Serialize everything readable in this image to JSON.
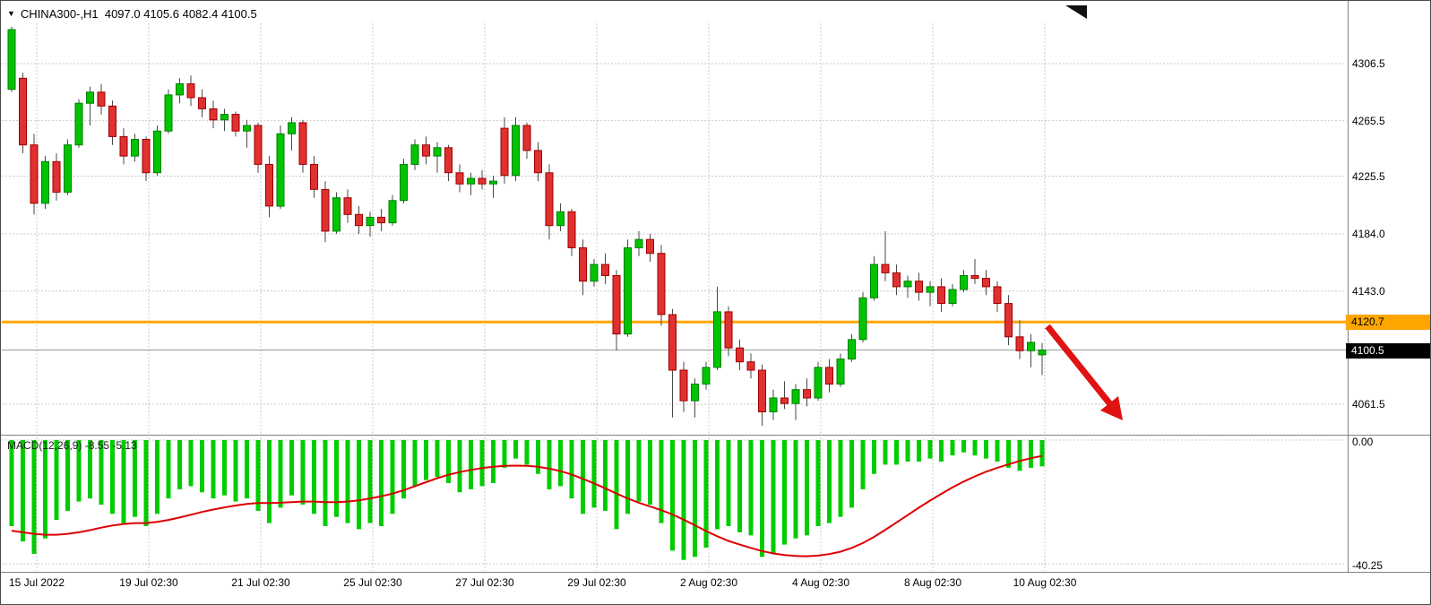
{
  "header": {
    "symbol_line": "CHINA300-,H1  4097.0 4105.6 4082.4 4100.5"
  },
  "macd": {
    "label": "MACD(12,26,9) -8.55 -5.13"
  },
  "badges": {
    "line": {
      "text": "4120.7"
    },
    "bid": {
      "text": "4100.5"
    }
  },
  "colors": {
    "up": "#00C400",
    "up_border": "#007D00",
    "down": "#E03030",
    "down_border": "#9C0000",
    "wick": "#4A4A4A",
    "hline": "#FFA500",
    "bid_line": "#9A9A9A",
    "hist": "#00CC00",
    "signal": "#DD0000",
    "grid": "#C9C9C9",
    "arrow": "#E01212"
  },
  "annotations": {
    "red_arrow": {
      "shape": "arrow",
      "direction": "down-right",
      "meaning": "projected decline below current price"
    }
  },
  "chart_data": [
    {
      "type": "candlestick",
      "symbol": "CHINA300-",
      "timeframe": "H1",
      "current_ohlc": {
        "open": 4097.0,
        "high": 4105.6,
        "low": 4082.4,
        "close": 4100.5
      },
      "horizontal_line": 4120.7,
      "current_price": 4100.5,
      "ylim": [
        4039.6,
        4335.5
      ],
      "y_ticks": [
        {
          "label": "4306.5",
          "value": 4306.5
        },
        {
          "label": "4265.5",
          "value": 4265.5
        },
        {
          "label": "4225.5",
          "value": 4225.5
        },
        {
          "label": "4184.0",
          "value": 4184.0
        },
        {
          "label": "4143.0",
          "value": 4143.0
        },
        {
          "label": "4061.5",
          "value": 4061.5
        }
      ],
      "x_ticklabels": [
        "15 Jul 2022",
        "19 Jul 02:30",
        "21 Jul 02:30",
        "25 Jul 02:30",
        "27 Jul 02:30",
        "29 Jul 02:30",
        "2 Aug 02:30",
        "4 Aug 02:30",
        "8 Aug 02:30",
        "10 Aug 02:30"
      ],
      "ohlc": [
        [
          4288,
          4333,
          4286,
          4331
        ],
        [
          4296,
          4300,
          4242,
          4248
        ],
        [
          4248,
          4256,
          4198,
          4206
        ],
        [
          4206,
          4240,
          4202,
          4236
        ],
        [
          4236,
          4242,
          4208,
          4214
        ],
        [
          4214,
          4252,
          4212,
          4248
        ],
        [
          4248,
          4281,
          4246,
          4278
        ],
        [
          4278,
          4290,
          4262,
          4286
        ],
        [
          4286,
          4292,
          4270,
          4276
        ],
        [
          4276,
          4280,
          4248,
          4254
        ],
        [
          4254,
          4260,
          4234,
          4240
        ],
        [
          4240,
          4256,
          4236,
          4252
        ],
        [
          4252,
          4254,
          4222,
          4228
        ],
        [
          4228,
          4262,
          4226,
          4258
        ],
        [
          4258,
          4288,
          4256,
          4284
        ],
        [
          4284,
          4296,
          4278,
          4292
        ],
        [
          4292,
          4298,
          4276,
          4282
        ],
        [
          4282,
          4288,
          4268,
          4274
        ],
        [
          4274,
          4280,
          4260,
          4266
        ],
        [
          4266,
          4274,
          4258,
          4270
        ],
        [
          4270,
          4272,
          4254,
          4258
        ],
        [
          4258,
          4266,
          4246,
          4262
        ],
        [
          4262,
          4264,
          4228,
          4234
        ],
        [
          4234,
          4240,
          4196,
          4204
        ],
        [
          4204,
          4262,
          4202,
          4256
        ],
        [
          4256,
          4268,
          4244,
          4264
        ],
        [
          4264,
          4266,
          4228,
          4234
        ],
        [
          4234,
          4240,
          4210,
          4216
        ],
        [
          4216,
          4222,
          4178,
          4186
        ],
        [
          4186,
          4214,
          4184,
          4210
        ],
        [
          4210,
          4216,
          4192,
          4198
        ],
        [
          4198,
          4204,
          4184,
          4190
        ],
        [
          4190,
          4200,
          4182,
          4196
        ],
        [
          4196,
          4202,
          4186,
          4192
        ],
        [
          4192,
          4212,
          4190,
          4208
        ],
        [
          4208,
          4238,
          4206,
          4234
        ],
        [
          4234,
          4252,
          4230,
          4248
        ],
        [
          4248,
          4254,
          4234,
          4240
        ],
        [
          4240,
          4250,
          4228,
          4246
        ],
        [
          4246,
          4248,
          4222,
          4228
        ],
        [
          4228,
          4234,
          4214,
          4220
        ],
        [
          4220,
          4228,
          4212,
          4224
        ],
        [
          4224,
          4230,
          4216,
          4220
        ],
        [
          4220,
          4226,
          4210,
          4222
        ],
        [
          4260,
          4268,
          4220,
          4226
        ],
        [
          4226,
          4268,
          4222,
          4262
        ],
        [
          4262,
          4264,
          4238,
          4244
        ],
        [
          4244,
          4250,
          4222,
          4228
        ],
        [
          4228,
          4234,
          4180,
          4190
        ],
        [
          4190,
          4206,
          4186,
          4200
        ],
        [
          4200,
          4202,
          4168,
          4174
        ],
        [
          4174,
          4180,
          4140,
          4150
        ],
        [
          4150,
          4166,
          4146,
          4162
        ],
        [
          4162,
          4170,
          4148,
          4154
        ],
        [
          4154,
          4158,
          4100,
          4112
        ],
        [
          4112,
          4180,
          4110,
          4174
        ],
        [
          4174,
          4186,
          4168,
          4180
        ],
        [
          4180,
          4184,
          4164,
          4170
        ],
        [
          4170,
          4176,
          4118,
          4126
        ],
        [
          4126,
          4130,
          4052,
          4086
        ],
        [
          4086,
          4092,
          4056,
          4064
        ],
        [
          4064,
          4080,
          4052,
          4076
        ],
        [
          4076,
          4092,
          4072,
          4088
        ],
        [
          4088,
          4146,
          4086,
          4128
        ],
        [
          4128,
          4132,
          4096,
          4102
        ],
        [
          4102,
          4108,
          4086,
          4092
        ],
        [
          4092,
          4098,
          4080,
          4086
        ],
        [
          4086,
          4090,
          4046,
          4056
        ],
        [
          4056,
          4072,
          4050,
          4066
        ],
        [
          4066,
          4078,
          4058,
          4062
        ],
        [
          4062,
          4076,
          4050,
          4072
        ],
        [
          4072,
          4080,
          4060,
          4066
        ],
        [
          4066,
          4092,
          4064,
          4088
        ],
        [
          4088,
          4094,
          4070,
          4076
        ],
        [
          4076,
          4098,
          4074,
          4094
        ],
        [
          4094,
          4112,
          4092,
          4108
        ],
        [
          4108,
          4142,
          4106,
          4138
        ],
        [
          4138,
          4168,
          4136,
          4162
        ],
        [
          4162,
          4186,
          4150,
          4156
        ],
        [
          4156,
          4162,
          4140,
          4146
        ],
        [
          4146,
          4154,
          4138,
          4150
        ],
        [
          4150,
          4156,
          4136,
          4142
        ],
        [
          4142,
          4150,
          4132,
          4146
        ],
        [
          4146,
          4152,
          4128,
          4134
        ],
        [
          4134,
          4148,
          4132,
          4144
        ],
        [
          4144,
          4158,
          4142,
          4154
        ],
        [
          4154,
          4166,
          4148,
          4152
        ],
        [
          4152,
          4158,
          4140,
          4146
        ],
        [
          4146,
          4150,
          4128,
          4134
        ],
        [
          4134,
          4140,
          4104,
          4110
        ],
        [
          4110,
          4122,
          4094,
          4100
        ],
        [
          4100,
          4112,
          4088,
          4106
        ],
        [
          4097.0,
          4105.6,
          4082.4,
          4100.5
        ]
      ]
    },
    {
      "type": "bar",
      "name": "MACD(12,26,9)",
      "macd_value": -8.55,
      "signal_value": -5.13,
      "ylim": [
        -40.25,
        0
      ],
      "y_ticks": [
        {
          "label": "0.00",
          "value": 0
        },
        {
          "label": "-40.25",
          "value": -40.25
        }
      ],
      "values": [
        -28,
        -33,
        -37,
        -32,
        -26,
        -23,
        -20,
        -19,
        -21,
        -24,
        -27,
        -25,
        -28,
        -24,
        -19,
        -16,
        -15,
        -17,
        -19,
        -18,
        -20,
        -19,
        -23,
        -27,
        -22,
        -18,
        -21,
        -24,
        -28,
        -25,
        -27,
        -29,
        -27,
        -28,
        -24,
        -19,
        -15,
        -13,
        -12,
        -14,
        -17,
        -16,
        -15,
        -14,
        -9,
        -6,
        -8,
        -11,
        -16,
        -15,
        -19,
        -24,
        -22,
        -23,
        -29,
        -24,
        -20,
        -21,
        -27,
        -36,
        -39,
        -38,
        -35,
        -29,
        -28,
        -30,
        -31,
        -38,
        -37,
        -34,
        -32,
        -31,
        -28,
        -27,
        -25,
        -22,
        -16,
        -11,
        -8,
        -8,
        -7,
        -7,
        -6,
        -7,
        -5,
        -4,
        -5,
        -6,
        -7,
        -9,
        -10,
        -9,
        -8.55
      ],
      "signal": [
        -29.5,
        -30.0,
        -30.5,
        -30.8,
        -30.8,
        -30.5,
        -30.0,
        -29.3,
        -28.5,
        -27.8,
        -27.3,
        -27.0,
        -27.0,
        -26.6,
        -26.0,
        -25.2,
        -24.3,
        -23.4,
        -22.6,
        -21.9,
        -21.3,
        -20.8,
        -20.5,
        -20.5,
        -20.4,
        -20.2,
        -20.0,
        -20.0,
        -20.2,
        -20.2,
        -20.0,
        -19.6,
        -19.0,
        -18.3,
        -17.4,
        -16.3,
        -15.0,
        -13.7,
        -12.4,
        -11.3,
        -10.4,
        -9.7,
        -9.1,
        -8.7,
        -8.4,
        -8.3,
        -8.4,
        -8.7,
        -9.3,
        -10.1,
        -11.2,
        -12.6,
        -14.1,
        -15.7,
        -17.4,
        -19.0,
        -20.4,
        -21.6,
        -22.8,
        -24.2,
        -25.9,
        -27.7,
        -29.6,
        -31.3,
        -32.8,
        -34.0,
        -35.1,
        -36.1,
        -36.9,
        -37.4,
        -37.7,
        -37.8,
        -37.6,
        -37.1,
        -36.3,
        -35.1,
        -33.5,
        -31.5,
        -29.2,
        -26.8,
        -24.4,
        -22.0,
        -19.7,
        -17.5,
        -15.4,
        -13.5,
        -11.8,
        -10.3,
        -9.0,
        -7.9,
        -6.8,
        -5.9,
        -5.13
      ]
    }
  ]
}
